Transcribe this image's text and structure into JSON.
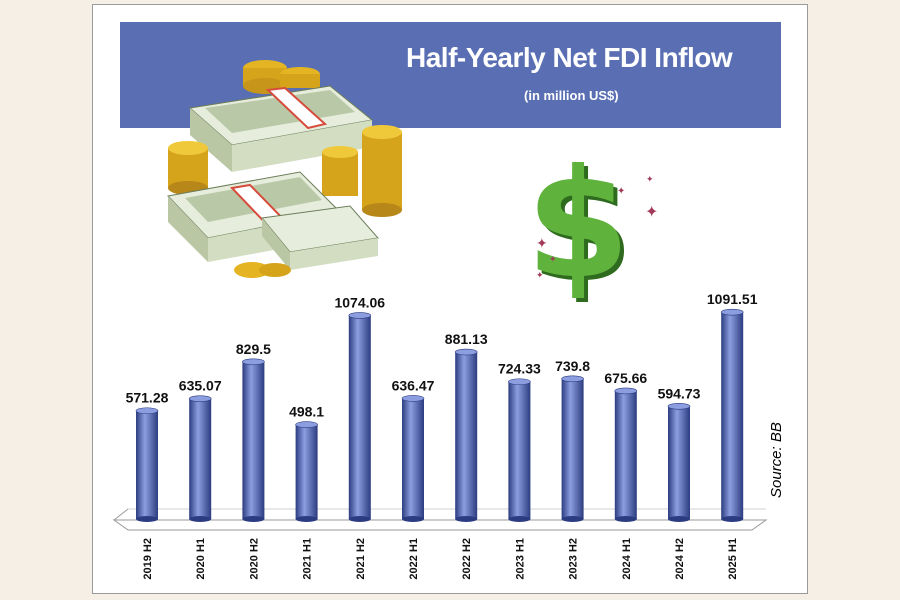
{
  "title": "Half-Yearly Net FDI Inflow",
  "subtitle": "(in million US$)",
  "source": "Source: BB",
  "colors": {
    "banner": "#5a6fb3",
    "bar": "#4a5fb5",
    "bar_dark": "#2c3c80",
    "bar_light": "#8c9ee0",
    "dollar_sign": "#5fb33c",
    "coin": "#e4b422",
    "cash": "#c9d6b5"
  },
  "decoration": {
    "money_icon": "money-stack-icon",
    "dollar_icon": "dollar-sign-icon"
  },
  "chart_data": {
    "type": "bar",
    "title": "Half-Yearly Net FDI Inflow",
    "subtitle": "(in million US$)",
    "categories": [
      "2019 H2",
      "2020 H1",
      "2020 H2",
      "2021 H1",
      "2021 H2",
      "2022 H1",
      "2022 H2",
      "2023 H1",
      "2023 H2",
      "2024 H1",
      "2024 H2",
      "2025 H1"
    ],
    "values": [
      571.28,
      635.07,
      829.5,
      498.1,
      1074.06,
      636.47,
      881.13,
      724.33,
      739.8,
      675.66,
      594.73,
      1091.51
    ],
    "value_labels": [
      "571.28",
      "635.07",
      "829.5",
      "498.1",
      "1074.06",
      "636.47",
      "881.13",
      "724.33",
      "739.8",
      "675.66",
      "594.73",
      "1091.51"
    ],
    "ylim": [
      0,
      1100
    ],
    "grid": false,
    "legend": "none"
  }
}
